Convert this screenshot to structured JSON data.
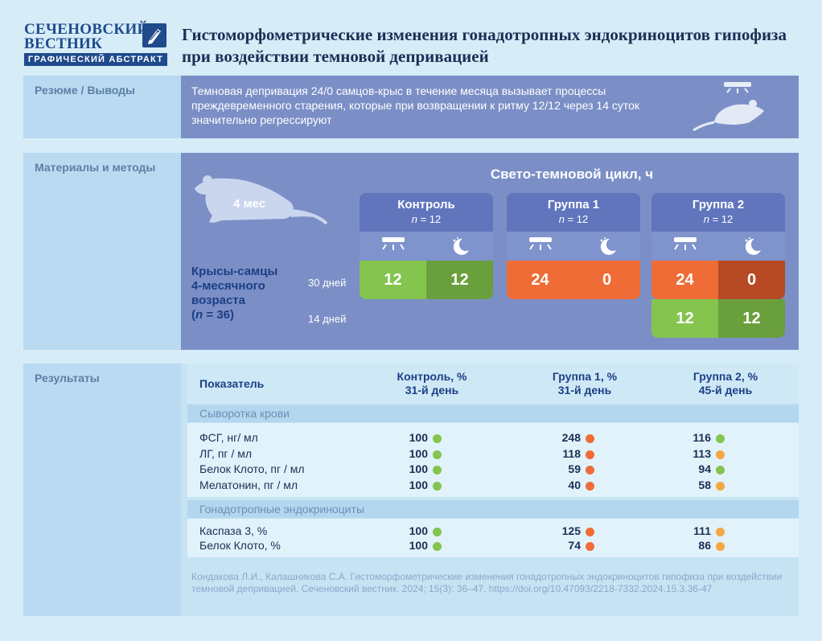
{
  "logo": {
    "line1": "СЕЧЕНОВСКИЙ",
    "line2": "ВЕСТНИК",
    "sub": "ГРАФИЧЕСКИЙ АБСТРАКТ"
  },
  "title": "Гистоморфометрические изменения гонадотропных эндокриноцитов гипофиза при воздействии темновой депривацией",
  "summary": {
    "label": "Резюме / Выводы",
    "text": "Темновая депривация 24/0 самцов-крыс в течение месяца вызывает процессы преждевременного старения, которые при возвращении к ритму 12/12 через 14 суток значительно регрессируют"
  },
  "methods": {
    "label": "Материалы и методы",
    "age": "4 мес",
    "rats_line1": "Крысы-самцы",
    "rats_line2": "4-месячного",
    "rats_line3": "возраста",
    "rats_n_prefix": "(",
    "rats_n_var": "n",
    "rats_n_rest": " = 36)",
    "days30": "30 дней",
    "days14": "14 дней",
    "cycle_title": "Свето-темновой цикл, ч",
    "n_var": "n",
    "groups": [
      {
        "name": "Контроль",
        "n": " = 12",
        "light": "12",
        "dark": "12"
      },
      {
        "name": "Группа 1",
        "n": " = 12",
        "light": "24",
        "dark": "0"
      },
      {
        "name": "Группа 2",
        "n": " = 12",
        "light": "24",
        "dark": "0",
        "light2": "12",
        "dark2": "12"
      }
    ],
    "colors": {
      "green_light": "#84c44f",
      "green_dark": "#6a9f3d",
      "orange": "#ef6c36",
      "brown": "#b74a24"
    }
  },
  "results": {
    "label": "Результаты",
    "headers": {
      "indicator": "Показатель",
      "c1_line1": "Контроль, %",
      "c1_line2": "31-й день",
      "c2_line1": "Группа 1, %",
      "c2_line2": "31-й день",
      "c3_line1": "Группа 2, %",
      "c3_line2": "45-й день"
    },
    "serum_label": "Сыворотка крови",
    "cells_label": "Гонадотропные эндокриноциты",
    "serum_rows": [
      {
        "name": "ФСГ, нг/ мл",
        "v1": "100",
        "v2": "248",
        "v3": "116",
        "c1": "#84c44f",
        "c2": "#ef6c36",
        "c3": "#84c44f"
      },
      {
        "name": "ЛГ, пг / мл",
        "v1": "100",
        "v2": "118",
        "v3": "113",
        "c1": "#84c44f",
        "c2": "#ef6c36",
        "c3": "#f5a742"
      },
      {
        "name": "Белок Клото, пг / мл",
        "v1": "100",
        "v2": "59",
        "v3": "94",
        "c1": "#84c44f",
        "c2": "#ef6c36",
        "c3": "#84c44f"
      },
      {
        "name": "Мелатонин, пг / мл",
        "v1": "100",
        "v2": "40",
        "v3": "58",
        "c1": "#84c44f",
        "c2": "#ef6c36",
        "c3": "#f5a742"
      }
    ],
    "cell_rows": [
      {
        "name": "Каспаза 3, %",
        "v1": "100",
        "v2": "125",
        "v3": "111",
        "c1": "#84c44f",
        "c2": "#ef6c36",
        "c3": "#f5a742"
      },
      {
        "name": "Белок Клото, %",
        "v1": "100",
        "v2": "74",
        "v3": "86",
        "c1": "#84c44f",
        "c2": "#ef6c36",
        "c3": "#f5a742"
      }
    ],
    "citation": "Кондакова Л.И., Калашникова С.А. Гистоморфометрические изменения гонадотропных эндокриноцитов гипофиза при воздействии темновой депривацией. Сеченовский вестник. 2024; 15(3): 36–47. https://doi.org/10.47093/2218-7332.2024.15.3.36-47"
  }
}
